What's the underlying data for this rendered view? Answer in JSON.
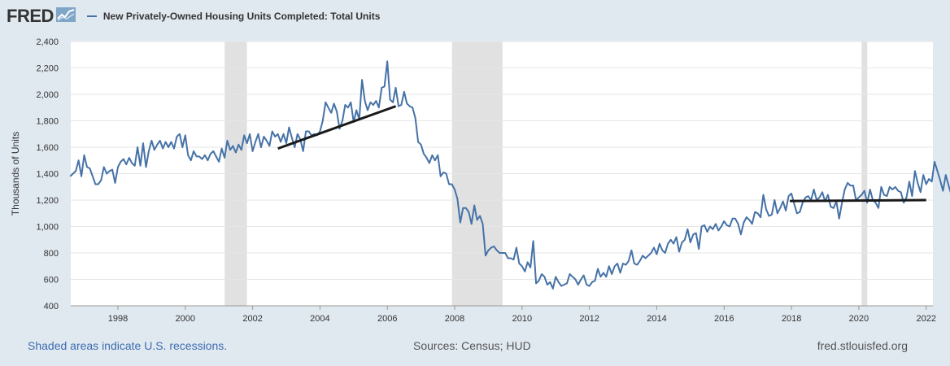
{
  "header": {
    "logo": "FRED",
    "series_title": "New Privately-Owned Housing Units Completed: Total Units"
  },
  "footer": {
    "recessions_note": "Shaded areas indicate U.S. recessions.",
    "sources": "Sources: Census; HUD",
    "site": "fred.stlouisfed.org"
  },
  "colors": {
    "background": "#e1e9f0",
    "plot": "#ffffff",
    "series": "#4572a7",
    "recession": "#e1e1e1",
    "trend": "#1a1a1a",
    "grid": "#e6e6e6"
  },
  "chart_data": {
    "type": "line",
    "title": "New Privately-Owned Housing Units Completed: Total Units",
    "xlabel": "",
    "ylabel": "Thousands of Units",
    "xlim": [
      1996.6,
      2022.2
    ],
    "ylim": [
      400,
      2400
    ],
    "x_ticks": [
      "1998",
      "2000",
      "2002",
      "2004",
      "2006",
      "2008",
      "2010",
      "2012",
      "2014",
      "2016",
      "2018",
      "2020",
      "2022"
    ],
    "y_ticks": [
      "400",
      "600",
      "800",
      "1,000",
      "1,200",
      "1,400",
      "1,600",
      "1,800",
      "2,000",
      "2,200",
      "2,400"
    ],
    "grid": "horizontal",
    "legend": "top-left",
    "recessions": [
      [
        2001.17,
        2001.83
      ],
      [
        2007.92,
        2009.42
      ],
      [
        2020.08,
        2020.25
      ]
    ],
    "series": [
      {
        "name": "New Privately-Owned Housing Units Completed: Total Units",
        "x_start": 1996.583,
        "step": 0.08333,
        "values": [
          1380,
          1400,
          1420,
          1500,
          1380,
          1540,
          1450,
          1440,
          1380,
          1320,
          1320,
          1350,
          1450,
          1400,
          1420,
          1430,
          1330,
          1450,
          1490,
          1510,
          1470,
          1520,
          1480,
          1460,
          1600,
          1460,
          1630,
          1450,
          1570,
          1650,
          1580,
          1620,
          1650,
          1590,
          1640,
          1600,
          1640,
          1590,
          1680,
          1700,
          1600,
          1690,
          1540,
          1500,
          1570,
          1530,
          1530,
          1510,
          1540,
          1500,
          1550,
          1570,
          1530,
          1490,
          1590,
          1520,
          1650,
          1580,
          1610,
          1560,
          1620,
          1580,
          1690,
          1630,
          1700,
          1570,
          1640,
          1700,
          1600,
          1680,
          1650,
          1610,
          1720,
          1680,
          1700,
          1640,
          1700,
          1630,
          1750,
          1670,
          1600,
          1700,
          1660,
          1570,
          1720,
          1720,
          1690,
          1700,
          1690,
          1720,
          1800,
          1940,
          1900,
          1860,
          1930,
          1870,
          1740,
          1800,
          1920,
          1900,
          1940,
          1790,
          1880,
          1810,
          2110,
          1950,
          1880,
          1940,
          1920,
          1950,
          1900,
          2050,
          2060,
          2250,
          1960,
          1940,
          2050,
          1910,
          1920,
          2020,
          1930,
          1910,
          1900,
          1820,
          1640,
          1620,
          1550,
          1520,
          1480,
          1540,
          1500,
          1540,
          1380,
          1410,
          1400,
          1320,
          1320,
          1280,
          1210,
          1030,
          1140,
          1140,
          1110,
          1020,
          1160,
          1050,
          1080,
          1020,
          780,
          820,
          840,
          850,
          820,
          800,
          800,
          800,
          760,
          760,
          750,
          840,
          720,
          700,
          660,
          730,
          690,
          890,
          570,
          590,
          640,
          620,
          560,
          580,
          530,
          620,
          580,
          550,
          560,
          570,
          640,
          620,
          600,
          560,
          600,
          630,
          560,
          550,
          580,
          590,
          680,
          620,
          650,
          620,
          700,
          640,
          700,
          720,
          650,
          720,
          710,
          740,
          820,
          720,
          710,
          740,
          780,
          760,
          780,
          800,
          840,
          790,
          870,
          820,
          800,
          870,
          900,
          870,
          920,
          810,
          880,
          900,
          980,
          880,
          940,
          950,
          830,
          1000,
          1010,
          960,
          1000,
          980,
          1020,
          970,
          1000,
          1040,
          1010,
          1000,
          1060,
          1060,
          1020,
          940,
          1030,
          1070,
          1050,
          1020,
          1110,
          1100,
          1070,
          1240,
          1130,
          1080,
          1090,
          1200,
          1100,
          1140,
          1190,
          1120,
          1230,
          1250,
          1170,
          1100,
          1110,
          1180,
          1220,
          1230,
          1200,
          1280,
          1200,
          1220,
          1260,
          1190,
          1240,
          1150,
          1140,
          1190,
          1060,
          1180,
          1280,
          1330,
          1310,
          1310,
          1200,
          1220,
          1240,
          1270,
          1180,
          1280,
          1200,
          1180,
          1140,
          1300,
          1240,
          1230,
          1300,
          1280,
          1300,
          1270,
          1260,
          1180,
          1220,
          1340,
          1230,
          1420,
          1330,
          1260,
          1390,
          1320,
          1360,
          1340,
          1490,
          1420,
          1350,
          1270,
          1390,
          1310,
          1240,
          1250,
          1410,
          1340,
          1260
        ]
      }
    ],
    "trend_segments": [
      {
        "x": [
          2002.75,
          2006.25
        ],
        "y": [
          1590,
          1910
        ]
      },
      {
        "x": [
          2017.95,
          2022.0
        ],
        "y": [
          1193,
          1200
        ]
      }
    ]
  }
}
